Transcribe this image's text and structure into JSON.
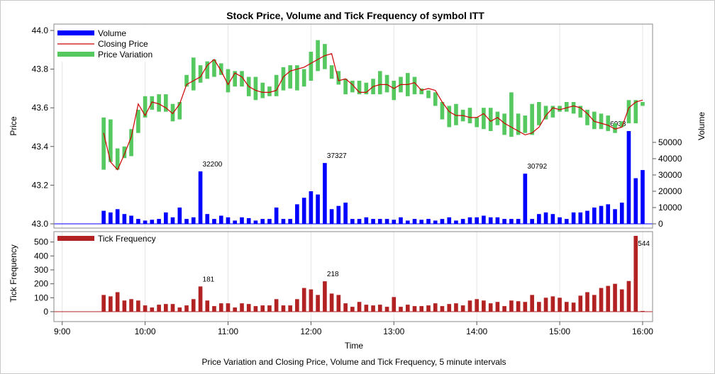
{
  "chart_data": {
    "type": "bar",
    "title": "Stock Price, Volume and Tick Frequency of symbol ITT",
    "footnote": "Price Variation and Closing Price, Volume and Tick Frequency, 5 minute intervals",
    "xlabel": "Time",
    "x_ticks": [
      "9:00",
      "10:00",
      "11:00",
      "12:00",
      "13:00",
      "14:00",
      "15:00",
      "16:00"
    ],
    "x_range_hours": [
      8.9,
      16.12
    ],
    "interval_minutes": 5,
    "times": [
      9.5,
      9.583,
      9.667,
      9.75,
      9.833,
      9.917,
      10,
      10.083,
      10.167,
      10.25,
      10.333,
      10.417,
      10.5,
      10.583,
      10.667,
      10.75,
      10.833,
      10.917,
      11,
      11.083,
      11.167,
      11.25,
      11.333,
      11.417,
      11.5,
      11.583,
      11.667,
      11.75,
      11.833,
      11.917,
      12,
      12.083,
      12.167,
      12.25,
      12.333,
      12.417,
      12.5,
      12.583,
      12.667,
      12.75,
      12.833,
      12.917,
      13,
      13.083,
      13.167,
      13.25,
      13.333,
      13.417,
      13.5,
      13.583,
      13.667,
      13.75,
      13.833,
      13.917,
      14,
      14.083,
      14.167,
      14.25,
      14.333,
      14.417,
      14.5,
      14.583,
      14.667,
      14.75,
      14.833,
      14.917,
      15,
      15.083,
      15.167,
      15.25,
      15.333,
      15.417,
      15.5,
      15.583,
      15.667,
      15.75,
      15.833,
      15.917,
      16
    ],
    "price_panel": {
      "ylabel": "Price",
      "ylim": [
        43.0,
        44.0
      ],
      "y_ticks": [
        43.0,
        43.2,
        43.4,
        43.6,
        43.8,
        44.0
      ],
      "close": [
        43.47,
        43.32,
        43.28,
        43.36,
        43.45,
        43.62,
        43.56,
        43.63,
        43.62,
        43.6,
        43.57,
        43.62,
        43.72,
        43.74,
        43.76,
        43.82,
        43.85,
        43.79,
        43.72,
        43.78,
        43.76,
        43.71,
        43.69,
        43.68,
        43.68,
        43.69,
        43.76,
        43.79,
        43.8,
        43.81,
        43.83,
        43.85,
        43.87,
        43.88,
        43.74,
        43.75,
        43.72,
        43.68,
        43.68,
        43.71,
        43.72,
        43.72,
        43.7,
        43.72,
        43.72,
        43.73,
        43.69,
        43.7,
        43.69,
        43.63,
        43.58,
        43.56,
        43.56,
        43.55,
        43.55,
        43.57,
        43.53,
        43.55,
        43.52,
        43.5,
        43.48,
        43.46,
        43.47,
        43.5,
        43.56,
        43.6,
        43.59,
        43.6,
        43.61,
        43.6,
        43.57,
        43.53,
        43.52,
        43.51,
        43.49,
        43.5,
        43.6,
        43.63,
        43.64
      ],
      "low": [
        43.28,
        43.32,
        43.28,
        43.34,
        43.35,
        43.47,
        43.55,
        43.59,
        43.58,
        43.58,
        43.53,
        43.54,
        43.71,
        43.69,
        43.73,
        43.75,
        43.76,
        43.77,
        43.68,
        43.71,
        43.71,
        43.66,
        43.64,
        43.65,
        43.66,
        43.66,
        43.69,
        43.7,
        43.69,
        43.71,
        43.74,
        43.79,
        43.8,
        43.75,
        43.72,
        43.67,
        43.68,
        43.67,
        43.67,
        43.67,
        43.67,
        43.68,
        43.64,
        43.68,
        43.66,
        43.67,
        43.67,
        43.65,
        43.61,
        43.54,
        43.5,
        43.51,
        43.53,
        43.52,
        43.5,
        43.49,
        43.48,
        43.51,
        43.46,
        43.45,
        43.46,
        43.47,
        43.46,
        43.51,
        43.54,
        43.55,
        43.58,
        43.58,
        43.57,
        43.55,
        43.51,
        43.49,
        43.49,
        43.48,
        43.47,
        43.5,
        43.52,
        43.52,
        43.61
      ],
      "high": [
        43.55,
        43.54,
        43.39,
        43.4,
        43.49,
        43.59,
        43.66,
        43.66,
        43.67,
        43.67,
        43.62,
        43.63,
        43.77,
        43.86,
        43.82,
        43.84,
        43.85,
        43.83,
        43.8,
        43.79,
        43.79,
        43.76,
        43.76,
        43.73,
        43.71,
        43.77,
        43.81,
        43.82,
        43.82,
        43.8,
        43.89,
        43.95,
        43.93,
        43.82,
        43.79,
        43.75,
        43.74,
        43.74,
        43.73,
        43.75,
        43.79,
        43.77,
        43.74,
        43.76,
        43.78,
        43.76,
        43.7,
        43.69,
        43.68,
        43.63,
        43.61,
        43.62,
        43.59,
        43.6,
        43.55,
        43.6,
        43.6,
        43.58,
        43.57,
        43.68,
        43.57,
        43.56,
        43.62,
        43.63,
        43.61,
        43.61,
        43.61,
        43.63,
        43.63,
        43.61,
        43.59,
        43.58,
        43.57,
        43.56,
        43.52,
        43.53,
        43.64,
        43.64,
        43.63
      ],
      "volume": [
        8000,
        7000,
        9000,
        6000,
        5000,
        3000,
        2000,
        2500,
        3000,
        7000,
        4000,
        10000,
        3000,
        4000,
        32200,
        6000,
        3000,
        5000,
        4000,
        2000,
        4000,
        3500,
        2000,
        3000,
        3000,
        10000,
        3000,
        3000,
        12000,
        16000,
        20000,
        18000,
        37327,
        9000,
        11000,
        13000,
        3000,
        3000,
        4000,
        3000,
        3000,
        3000,
        2500,
        4000,
        2000,
        3000,
        2500,
        3000,
        2000,
        3000,
        4000,
        2000,
        3000,
        4000,
        4000,
        5000,
        4000,
        4000,
        3000,
        3000,
        3000,
        30792,
        3000,
        6000,
        7000,
        6000,
        4000,
        3000,
        7000,
        7000,
        8000,
        10000,
        11000,
        12000,
        9000,
        13000,
        56933,
        28000,
        33000
      ],
      "volume_ylim": [
        0,
        60000
      ],
      "volume_ticks": [
        0,
        10000,
        20000,
        30000,
        40000,
        50000
      ],
      "volume_label": "Volume",
      "volume_labels": [
        {
          "index": 14,
          "text": "32200"
        },
        {
          "index": 32,
          "text": "37327"
        },
        {
          "index": 61,
          "text": "30792"
        },
        {
          "index": 76,
          "text": "56933"
        }
      ],
      "legend": [
        "Volume",
        "Closing Price",
        "Price Variation"
      ]
    },
    "tick_panel": {
      "ylabel": "Tick Frequency",
      "ylim": [
        -10,
        560
      ],
      "y_ticks": [
        0,
        100,
        200,
        300,
        400,
        500
      ],
      "values": [
        120,
        110,
        140,
        80,
        90,
        80,
        45,
        30,
        50,
        55,
        55,
        30,
        45,
        90,
        181,
        80,
        40,
        60,
        60,
        30,
        60,
        55,
        40,
        45,
        45,
        90,
        45,
        45,
        90,
        170,
        160,
        120,
        218,
        130,
        120,
        60,
        35,
        70,
        50,
        45,
        50,
        35,
        105,
        35,
        50,
        40,
        40,
        45,
        60,
        40,
        55,
        60,
        45,
        80,
        90,
        80,
        60,
        70,
        40,
        80,
        75,
        70,
        120,
        70,
        100,
        110,
        100,
        70,
        65,
        115,
        140,
        120,
        170,
        185,
        200,
        160,
        220,
        544,
        5
      ],
      "labels": [
        {
          "index": 14,
          "text": "181"
        },
        {
          "index": 32,
          "text": "218"
        },
        {
          "index": 77,
          "text": "544"
        }
      ],
      "legend": [
        "Tick Frequency"
      ]
    },
    "colors": {
      "volume": "#0000ff",
      "close": "#cc0000",
      "variation": "#55c85f",
      "tick": "#b22222",
      "grid": "#e4e4e4",
      "frame": "#888888"
    }
  }
}
